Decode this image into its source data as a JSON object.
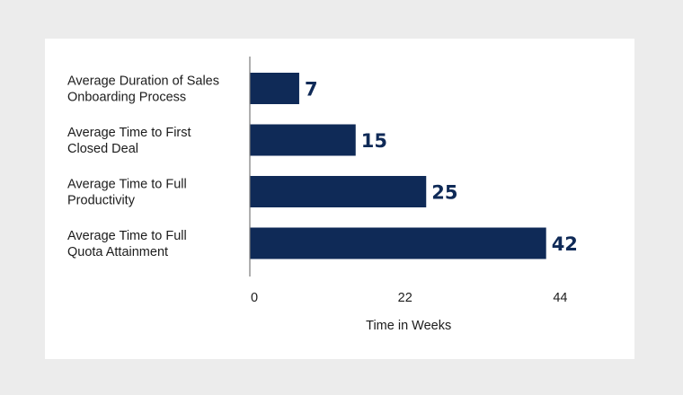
{
  "chart_data": {
    "type": "bar",
    "orientation": "horizontal",
    "categories": [
      [
        "Average Duration of Sales",
        "Onboarding Process"
      ],
      [
        "Average Time to First",
        "Closed Deal"
      ],
      [
        "Average Time to Full",
        "Productivity"
      ],
      [
        "Average Time to Full",
        "Quota Attainment"
      ]
    ],
    "values": [
      7,
      15,
      25,
      42
    ],
    "data_labels": [
      "7",
      "15",
      "25",
      "42"
    ],
    "xlabel": "Time in Weeks",
    "xlim": [
      0,
      44
    ],
    "xticks": [
      0,
      22,
      44
    ],
    "xtick_labels": [
      "0",
      "22",
      "44"
    ],
    "grid": false,
    "legend": "none",
    "bar_color": "#0f2a57",
    "label_color": "#0f2a57",
    "axis_color": "#7a7a7a"
  }
}
